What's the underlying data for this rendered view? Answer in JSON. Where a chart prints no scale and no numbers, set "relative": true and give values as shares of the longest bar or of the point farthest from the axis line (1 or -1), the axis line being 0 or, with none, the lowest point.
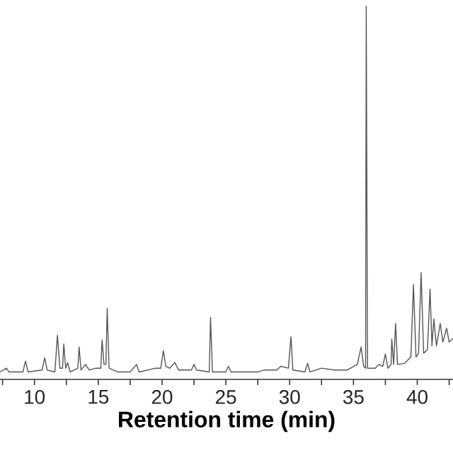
{
  "chart_data": {
    "type": "line",
    "relative": true,
    "xlabel": "Retention time (min)",
    "color": "#555555",
    "xlim": [
      7.3,
      42.8
    ],
    "xticks": [
      {
        "value": 7.5,
        "label": null
      },
      10,
      {
        "value": 12.5,
        "label": null
      },
      15,
      {
        "value": 17.5,
        "label": null
      },
      20,
      {
        "value": 22.5,
        "label": null
      },
      25,
      {
        "value": 27.5,
        "label": null
      },
      30,
      {
        "value": 32.5,
        "label": null
      },
      35,
      {
        "value": 37.5,
        "label": null
      },
      40,
      {
        "value": 42.5,
        "label": null
      }
    ],
    "x": [
      7.3,
      7.8,
      8.0,
      9.1,
      9.3,
      9.5,
      10.6,
      10.8,
      11.0,
      11.6,
      11.8,
      12.0,
      12.2,
      12.3,
      12.45,
      12.6,
      12.8,
      13.4,
      13.5,
      13.65,
      14.0,
      14.3,
      14.8,
      15.2,
      15.3,
      15.45,
      15.6,
      15.7,
      15.85,
      16.5,
      17.5,
      18.0,
      18.2,
      19.5,
      19.9,
      20.1,
      20.3,
      20.6,
      21.0,
      21.3,
      22.3,
      22.5,
      22.7,
      23.7,
      23.8,
      23.95,
      25.0,
      25.2,
      25.4,
      27.5,
      28.0,
      29.0,
      29.3,
      29.9,
      30.1,
      30.25,
      31.2,
      31.4,
      31.6,
      32.5,
      33.5,
      34.5,
      35.3,
      35.6,
      35.8,
      35.95,
      36.0,
      36.1,
      36.7,
      37.0,
      37.3,
      37.5,
      37.7,
      37.95,
      38.0,
      38.15,
      38.3,
      38.45,
      39.0,
      39.5,
      39.7,
      39.9,
      40.1,
      40.3,
      40.5,
      40.8,
      41.0,
      41.15,
      41.3,
      41.5,
      41.8,
      42.0,
      42.3,
      42.5,
      42.8
    ],
    "values": [
      0.02,
      0.03,
      0.02,
      0.02,
      0.049,
      0.02,
      0.025,
      0.058,
      0.025,
      0.02,
      0.118,
      0.03,
      0.03,
      0.095,
      0.03,
      0.045,
      0.02,
      0.03,
      0.087,
      0.025,
      0.04,
      0.025,
      0.03,
      0.03,
      0.106,
      0.04,
      0.04,
      0.19,
      0.03,
      0.02,
      0.02,
      0.04,
      0.02,
      0.03,
      0.03,
      0.077,
      0.035,
      0.03,
      0.045,
      0.025,
      0.025,
      0.04,
      0.025,
      0.02,
      0.166,
      0.02,
      0.02,
      0.035,
      0.02,
      0.02,
      0.025,
      0.025,
      0.035,
      0.03,
      0.114,
      0.025,
      0.02,
      0.043,
      0.02,
      0.03,
      0.025,
      0.025,
      0.04,
      0.087,
      0.035,
      0.03,
      1.0,
      0.03,
      0.03,
      0.04,
      0.035,
      0.068,
      0.03,
      0.04,
      0.108,
      0.04,
      0.15,
      0.04,
      0.043,
      0.06,
      0.254,
      0.06,
      0.07,
      0.286,
      0.07,
      0.08,
      0.242,
      0.09,
      0.162,
      0.09,
      0.15,
      0.1,
      0.137,
      0.1,
      0.11
    ]
  }
}
